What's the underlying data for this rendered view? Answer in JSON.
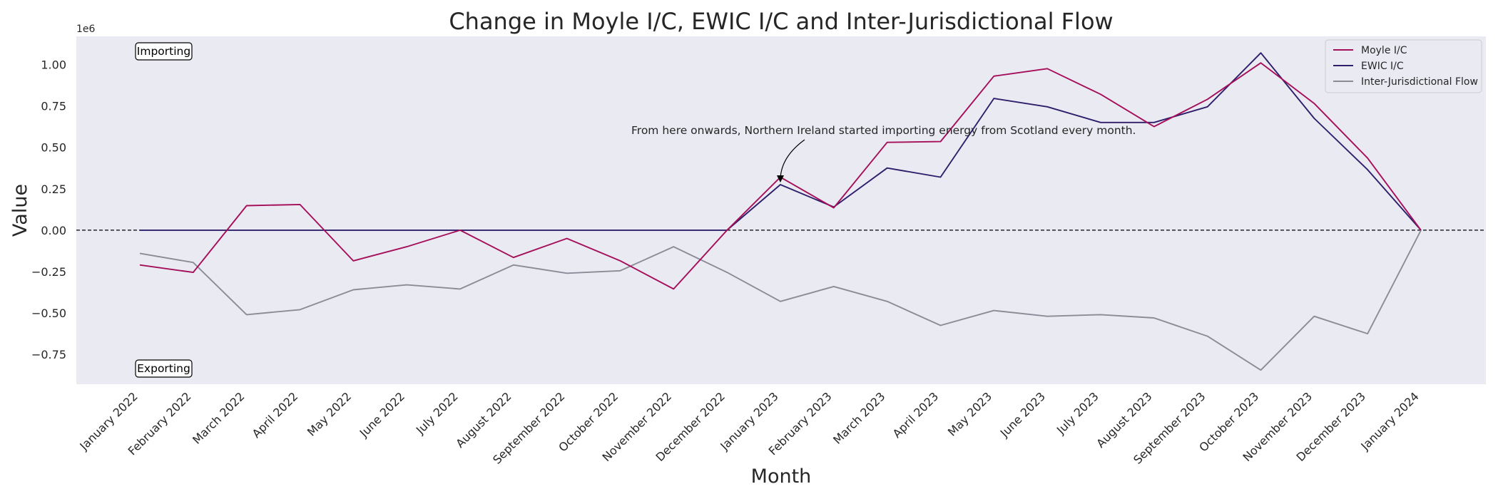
{
  "chart_data": {
    "type": "line",
    "title": "Change in Moyle I/C, EWIC I/C and Inter-Jurisdictional Flow",
    "xlabel": "Month",
    "ylabel": "Value",
    "y_multiplier": "1e6",
    "ylim": [
      -0.93,
      1.17
    ],
    "yticks": [
      "−0.75",
      "−0.50",
      "−0.25",
      "0.00",
      "0.25",
      "0.50",
      "0.75",
      "1.00"
    ],
    "ytick_values": [
      -0.75,
      -0.5,
      -0.25,
      0,
      0.25,
      0.5,
      0.75,
      1.0
    ],
    "grid": false,
    "legend_position": "top-right",
    "background": "#eaeaf2",
    "categories": [
      "January 2022",
      "February 2022",
      "March 2022",
      "April 2022",
      "May 2022",
      "June 2022",
      "July 2022",
      "August 2022",
      "September 2022",
      "October 2022",
      "November 2022",
      "December 2022",
      "January 2023",
      "February 2023",
      "March 2023",
      "April 2023",
      "May 2023",
      "June 2023",
      "July 2023",
      "August 2023",
      "September 2023",
      "October 2023",
      "November 2023",
      "December 2023",
      "January 2024"
    ],
    "series": [
      {
        "name": "Moyle I/C",
        "color": "#a50f5a",
        "values": [
          -0.21,
          -0.255,
          0.148,
          0.155,
          -0.185,
          -0.1,
          0.0,
          -0.165,
          -0.05,
          -0.185,
          -0.355,
          0.0,
          0.32,
          0.135,
          0.53,
          0.535,
          0.93,
          0.975,
          0.82,
          0.625,
          0.79,
          1.01,
          0.765,
          0.435,
          0.0
        ]
      },
      {
        "name": "EWIC I/C",
        "color": "#2e1e6b",
        "values": [
          0.0,
          0.0,
          0.0,
          0.0,
          0.0,
          0.0,
          0.0,
          0.0,
          0.0,
          0.0,
          0.0,
          0.0,
          0.275,
          0.14,
          0.375,
          0.32,
          0.795,
          0.745,
          0.65,
          0.65,
          0.745,
          1.07,
          0.675,
          0.365,
          0.0
        ]
      },
      {
        "name": "Inter-Jurisdictional Flow",
        "color": "#8c8c98",
        "values": [
          -0.14,
          -0.195,
          -0.51,
          -0.48,
          -0.36,
          -0.33,
          -0.355,
          -0.21,
          -0.26,
          -0.245,
          -0.1,
          -0.255,
          -0.43,
          -0.34,
          -0.43,
          -0.575,
          -0.485,
          -0.52,
          -0.51,
          -0.53,
          -0.64,
          -0.845,
          -0.52,
          -0.625,
          0.0
        ]
      }
    ],
    "reference_line": {
      "y": 0,
      "style": "dashed"
    },
    "annotations": [
      {
        "text": "From here onwards, Northern Ireland started importing energy from Scotland every month.",
        "x": "January 2023",
        "y": 0.275
      },
      {
        "text": "Importing",
        "style": "boxed",
        "x": "January 2022",
        "y": 1.07
      },
      {
        "text": "Exporting",
        "style": "boxed",
        "x": "January 2022",
        "y": -0.84
      }
    ]
  }
}
